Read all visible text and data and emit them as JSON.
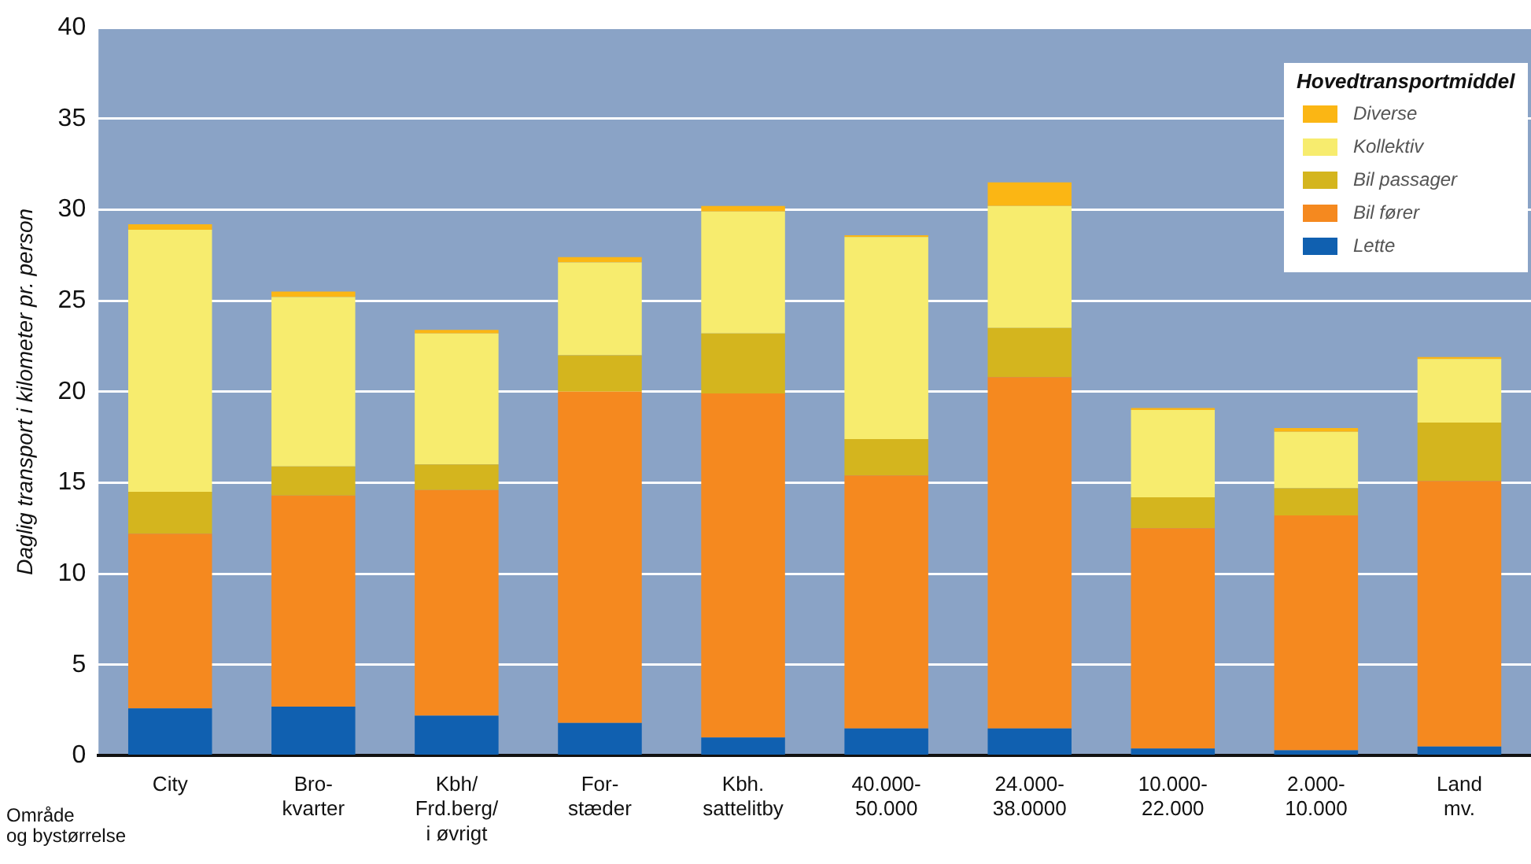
{
  "chart_data": {
    "type": "bar",
    "stacked": true,
    "xlabel": "Område\nog bystørrelse",
    "ylabel": "Daglig transport i kilometer pr. person",
    "legend_title": "Hovedtransportmiddel",
    "legend": "top right",
    "grid": "y",
    "categories": [
      "City",
      "Bro-\nkvarter",
      "Kbh/\nFrd.berg/\ni øvrigt",
      "For-\nstæder",
      "Kbh.\nsattelitby",
      "40.000-\n50.000",
      "24.000-\n38.0000",
      "10.000-\n22.000",
      "2.000-\n10.000",
      "Land\nmv."
    ],
    "ylim": [
      0,
      40
    ],
    "yticks": [
      0,
      5,
      10,
      15,
      20,
      25,
      30,
      35,
      40
    ],
    "series": [
      {
        "name": "Lette",
        "color": "#1060b0",
        "values": [
          2.6,
          2.7,
          2.2,
          1.8,
          1.0,
          1.5,
          1.5,
          0.4,
          0.3,
          0.5
        ]
      },
      {
        "name": "Bil fører",
        "color": "#f5891f",
        "values": [
          9.6,
          11.6,
          12.4,
          18.2,
          18.9,
          13.9,
          19.3,
          12.1,
          12.9,
          14.6
        ]
      },
      {
        "name": "Bil passager",
        "color": "#d4b51e",
        "values": [
          2.3,
          1.6,
          1.4,
          2.0,
          3.3,
          2.0,
          2.7,
          1.7,
          1.5,
          3.2
        ]
      },
      {
        "name": "Kollektiv",
        "color": "#f7ec6e",
        "values": [
          14.4,
          9.3,
          7.2,
          5.1,
          6.7,
          11.1,
          6.7,
          4.8,
          3.1,
          3.5
        ]
      },
      {
        "name": "Diverse",
        "color": "#fbb614",
        "values": [
          0.3,
          0.3,
          0.2,
          0.3,
          0.3,
          0.1,
          1.3,
          0.1,
          0.2,
          0.1
        ]
      }
    ]
  }
}
